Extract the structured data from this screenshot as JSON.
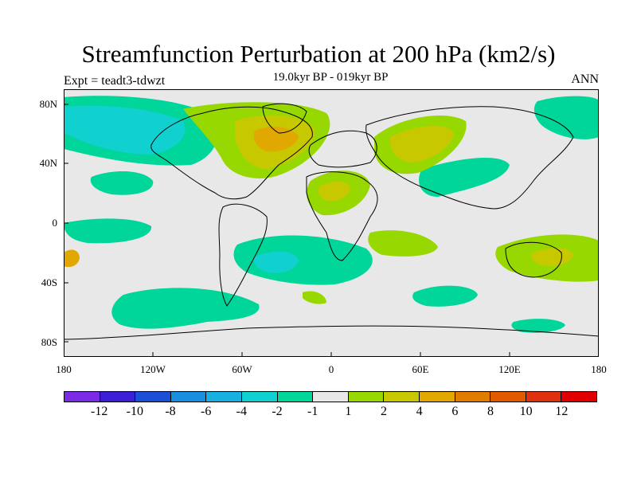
{
  "title": "Streamfunction Perturbation at 200 hPa (km2/s)",
  "subtitle": "19.0kyr BP - 019kyr BP",
  "experiment_label": "Expt = teadt3-tdwzt",
  "season_label": "ANN",
  "map": {
    "projection": "cylindrical-equidistant",
    "lon_range": [
      -180,
      180
    ],
    "lat_range": [
      -90,
      90
    ],
    "background_color": "#e8e8e8",
    "coastline_color": "#000000",
    "lat_ticks": [
      "80N",
      "40N",
      "0",
      "40S",
      "80S"
    ],
    "lon_ticks": [
      "180",
      "120W",
      "60W",
      "0",
      "60E",
      "120E",
      "180"
    ]
  },
  "colorbar": {
    "colors": [
      "#7b2be6",
      "#3a1fd6",
      "#1a4fd6",
      "#1a8fe0",
      "#18b0e0",
      "#10d0d0",
      "#00d59a",
      "#e8e8e8",
      "#96d800",
      "#c8c800",
      "#e0a800",
      "#e07c00",
      "#e05a00",
      "#e03010",
      "#e00000"
    ],
    "labels": [
      "-12",
      "-10",
      "-8",
      "-6",
      "-4",
      "-2",
      "-1",
      "1",
      "2",
      "4",
      "6",
      "8",
      "10",
      "12"
    ]
  },
  "chart_data": {
    "type": "contour-map",
    "variable": "Streamfunction Perturbation at 200 hPa",
    "units": "km2/s",
    "levels": [
      -12,
      -10,
      -8,
      -6,
      -4,
      -2,
      -1,
      1,
      2,
      4,
      6,
      8,
      10,
      12
    ],
    "regions": [
      {
        "name": "north-pacific-negative",
        "center_lon": -145,
        "center_lat": 62,
        "value": -3
      },
      {
        "name": "north-atlantic-positive",
        "center_lon": -38,
        "center_lat": 58,
        "value": 5
      },
      {
        "name": "central-asia-positive",
        "center_lon": 55,
        "center_lat": 52,
        "value": 3
      },
      {
        "name": "south-atlantic-negative",
        "center_lon": -35,
        "center_lat": -25,
        "value": -3
      },
      {
        "name": "southern-ocean-negative",
        "center_lon": -115,
        "center_lat": -55,
        "value": -2
      },
      {
        "name": "australia-positive",
        "center_lon": 135,
        "center_lat": -25,
        "value": 2
      },
      {
        "name": "west-africa-positive",
        "center_lon": 0,
        "center_lat": 22,
        "value": 3
      }
    ]
  }
}
